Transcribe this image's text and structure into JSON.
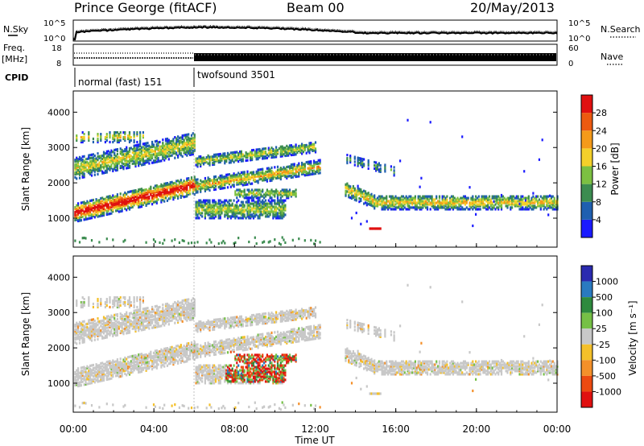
{
  "header": {
    "station": "Prince George (fitACF)",
    "beam": "Beam 00",
    "date": "20/May/2013"
  },
  "panels": {
    "nsky": {
      "left_label": "N.Sky",
      "right_label": "N.Search",
      "left_ticks": [
        "10^5",
        "10^0"
      ],
      "right_ticks": [
        "10^5",
        "10^0"
      ]
    },
    "freq": {
      "left_label_1": "Freq.",
      "left_label_2": "[MHz]",
      "right_label": "Nave",
      "left_ticks": [
        "18",
        "8"
      ],
      "right_ticks": [
        "60",
        "0"
      ]
    },
    "cpid": {
      "label": "CPID",
      "segments": [
        "normal (fast) 151",
        "twofsound 3501"
      ]
    }
  },
  "chart_data": [
    {
      "type": "heatmap",
      "name": "power",
      "ylabel": "Slant Range [km]",
      "xlabel": "Time UT",
      "ylim": [
        180,
        4600
      ],
      "y_ticks": [
        "1000",
        "2000",
        "3000",
        "4000"
      ],
      "colorbar": {
        "label": "Power [dB]",
        "ticks": [
          "4",
          "8",
          "12",
          "16",
          "20",
          "24",
          "28"
        ],
        "colors": [
          "#1a1aff",
          "#1f5fb0",
          "#3c8c50",
          "#7cc042",
          "#f4d02a",
          "#f49a1a",
          "#ec5a10",
          "#e01010"
        ]
      },
      "bands": [
        {
          "t0": 0.0,
          "t1": 6.0,
          "r0": 1000,
          "r1": 3400,
          "note": "rising band"
        },
        {
          "t0": 6.0,
          "t1": 12.2,
          "r0": 1100,
          "r1": 3000
        },
        {
          "t0": 13.5,
          "t1": 24.0,
          "r0": 1200,
          "r1": 1700
        }
      ]
    },
    {
      "type": "heatmap",
      "name": "velocity",
      "ylabel": "Slant Range [km]",
      "xlabel": "Time UT",
      "ylim": [
        180,
        4600
      ],
      "y_ticks": [
        "1000",
        "2000",
        "3000",
        "4000"
      ],
      "colorbar": {
        "label": "Velocity [m s⁻¹]",
        "ticks": [
          "1000",
          "500",
          "100",
          "25",
          "-25",
          "-100",
          "-500",
          "-1000"
        ],
        "colors": [
          "#2a2aaf",
          "#2a7ac0",
          "#2e8a3e",
          "#76c046",
          "#c8c8c8",
          "#f4c02a",
          "#f4902a",
          "#ec4a10",
          "#e01010"
        ]
      }
    }
  ],
  "x_axis": {
    "label": "Time UT",
    "ticks": [
      "00:00",
      "04:00",
      "08:00",
      "12:00",
      "16:00",
      "20:00",
      "00:00"
    ]
  }
}
